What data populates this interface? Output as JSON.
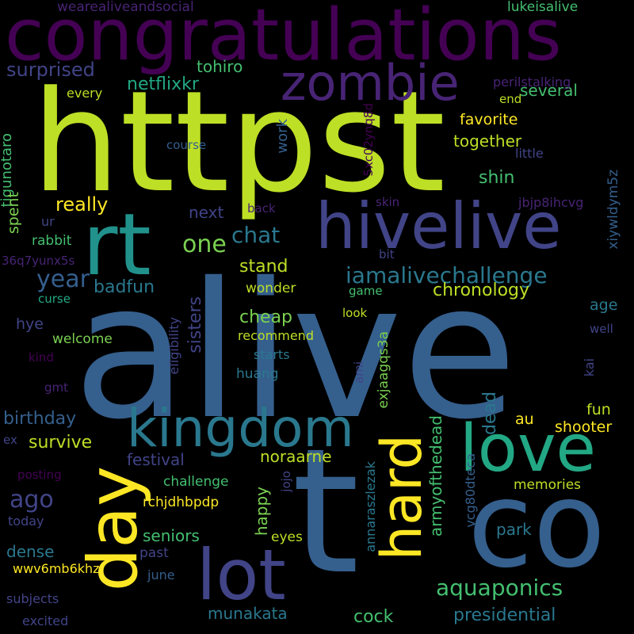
{
  "words": {
    "alive": "alive",
    "httpst": "httpst",
    "co": "co",
    "congratulations": "congratulations",
    "t": "t",
    "hivelive": "hivelive",
    "zombie": "zombie",
    "rt": "rt",
    "kingdom": "kingdom",
    "love": "love",
    "day": "day",
    "lot": "lot",
    "hard": "hard",
    "iamalivechallenge": "iamalivechallenge",
    "aquaponics": "aquaponics",
    "chat": "chat",
    "one": "one",
    "year": "year",
    "ago": "ago",
    "netflixkr": "netflixkr",
    "several": "several",
    "surprised": "surprised",
    "tohiro": "tohiro",
    "wearealiveandsocial": "wearealiveandsocial",
    "lukeisalive": "lukeisalive",
    "perilstalking": "perilstalking",
    "favorite": "favorite",
    "together": "together",
    "every": "every",
    "end": "end",
    "course": "course",
    "little": "little",
    "x5c02ynq8d": "5xc02ynq8d",
    "xiywldym5z": "xiywldym5z",
    "tigunotaro": "tigunotaro",
    "shin": "shin",
    "really": "really",
    "work": "work",
    "next": "next",
    "back": "back",
    "skin": "skin",
    "jbjp8ihcvg": "jbjp8ihcvg",
    "spent": "spent",
    "ur": "ur",
    "rabbit": "rabbit",
    "q7yunx5s": "36q7yunx5s",
    "bit": "bit",
    "stand": "stand",
    "badfun": "badfun",
    "chronology": "chronology",
    "curse": "curse",
    "game": "game",
    "wonder": "wonder",
    "age": "age",
    "hye": "hye",
    "sisters": "sisters",
    "cheap": "cheap",
    "look": "look",
    "well": "well",
    "welcome": "welcome",
    "recommend": "recommend",
    "eligibility": "eligibility",
    "starts": "starts",
    "exjaagqs3a": "exjaagqs3a",
    "kind": "kind",
    "huang": "huang",
    "ami": "ami",
    "kai": "kai",
    "gmt": "gmt",
    "birthday": "birthday",
    "dead": "dead",
    "fun": "fun",
    "au": "au",
    "shooter": "shooter",
    "survive": "survive",
    "armyofthedead": "armyofthedead",
    "ex": "ex",
    "festival": "festival",
    "noraarne": "noraarne",
    "posting": "posting",
    "challenge": "challenge",
    "jojo": "jojo",
    "annaraszlezak": "annaraszlezak",
    "vcg80dteca": "vcg80dteca",
    "memories": "memories",
    "rchjdhbpdp": "rchjdhbpdp",
    "today": "today",
    "happy": "happy",
    "park": "park",
    "seniors": "seniors",
    "dense": "dense",
    "eyes": "eyes",
    "past": "past",
    "wwv6mb6khz": "wwv6mb6khz",
    "june": "june",
    "subjects": "subjects",
    "munakata": "munakata",
    "excited": "excited",
    "cock": "cock",
    "presidential": "presidential"
  },
  "colors": {
    "background": "#000000",
    "deep_purple": "#440154",
    "purple": "#482475",
    "indigo": "#414487",
    "slate_blue": "#355f8d",
    "steel_blue": "#2a788e",
    "teal": "#21918c",
    "green_teal": "#22a884",
    "green": "#44bf70",
    "lime": "#7ad151",
    "yellow_green": "#bddf26",
    "yellow": "#fde725"
  }
}
